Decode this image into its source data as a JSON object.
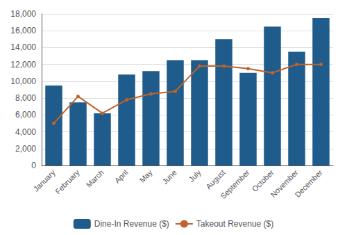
{
  "chart_data": {
    "type": "bar",
    "categories": [
      "January",
      "February",
      "March",
      "April",
      "May",
      "June",
      "July",
      "August",
      "September",
      "October",
      "November",
      "December"
    ],
    "series": [
      {
        "name": "Dine-In Revenue ($)",
        "type": "bar",
        "color": "#1f5c8b",
        "values": [
          9500,
          7500,
          6200,
          10800,
          11200,
          12500,
          12500,
          15000,
          11000,
          16500,
          13500,
          17500
        ]
      },
      {
        "name": "Takeout Revenue ($)",
        "type": "line",
        "color": "#c0622a",
        "marker": "circle",
        "values": [
          5000,
          8200,
          6200,
          7800,
          8500,
          8800,
          11800,
          11800,
          11500,
          11000,
          12000,
          12000
        ]
      }
    ],
    "ylim": [
      0,
      18000
    ],
    "yticks": [
      0,
      {
        "value": 2000,
        "label": "2,000"
      },
      {
        "value": 4000,
        "label": "4,000"
      },
      {
        "value": 6000,
        "label": "6,000"
      },
      {
        "value": 8000,
        "label": "8,000"
      },
      {
        "value": 10000,
        "label": "10,000"
      },
      {
        "value": 12000,
        "label": "12,000"
      },
      {
        "value": 14000,
        "label": "14,000"
      },
      {
        "value": 16000,
        "label": "16,000"
      },
      {
        "value": 18000,
        "label": "18,000"
      }
    ],
    "grid": true,
    "legend": "bottom"
  }
}
